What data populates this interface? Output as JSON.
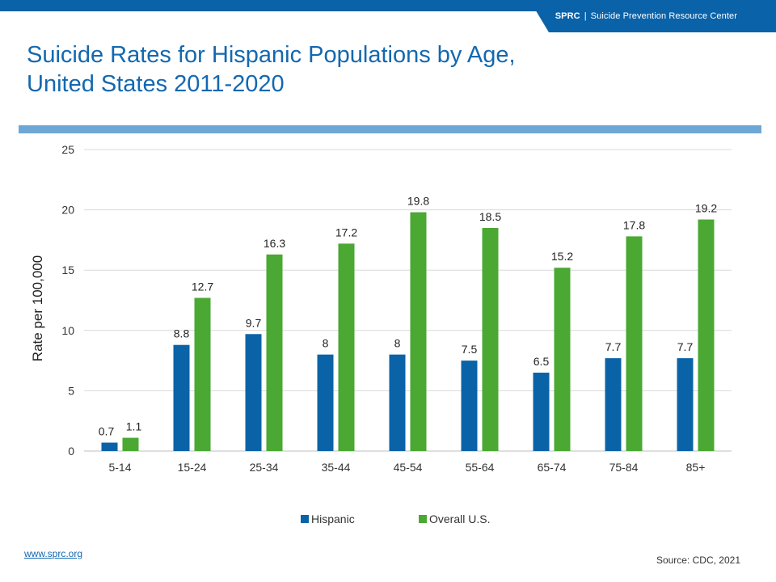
{
  "header": {
    "org_abbr": "SPRC",
    "separator": "|",
    "org_name": "Suicide Prevention Resource Center"
  },
  "title_line1": "Suicide Rates for Hispanic Populations by Age,",
  "title_line2": "United States 2011-2020",
  "footer": {
    "website": "www.sprc.org",
    "source": "Source: CDC, 2021"
  },
  "colors": {
    "brand_blue": "#0a62a8",
    "title_blue": "#1368b0",
    "rule_blue": "#6ea7d6",
    "hispanic": "#0b63a7",
    "overall": "#4aa833"
  },
  "chart_data": {
    "type": "bar",
    "ylabel": "Rate per 100,000",
    "xlabel": "",
    "ylim": [
      0,
      25
    ],
    "yticks": [
      0,
      5,
      10,
      15,
      20,
      25
    ],
    "grid": true,
    "legend_position": "bottom",
    "categories": [
      "5-14",
      "15-24",
      "25-34",
      "35-44",
      "45-54",
      "55-64",
      "65-74",
      "75-84",
      "85+"
    ],
    "series": [
      {
        "name": "Hispanic",
        "color": "#0b63a7",
        "values": [
          0.7,
          8.8,
          9.7,
          8,
          8,
          7.5,
          6.5,
          7.7,
          7.7
        ]
      },
      {
        "name": "Overall U.S.",
        "color": "#4aa833",
        "values": [
          1.1,
          12.7,
          16.3,
          17.2,
          19.8,
          18.5,
          15.2,
          17.8,
          19.2
        ]
      }
    ]
  }
}
